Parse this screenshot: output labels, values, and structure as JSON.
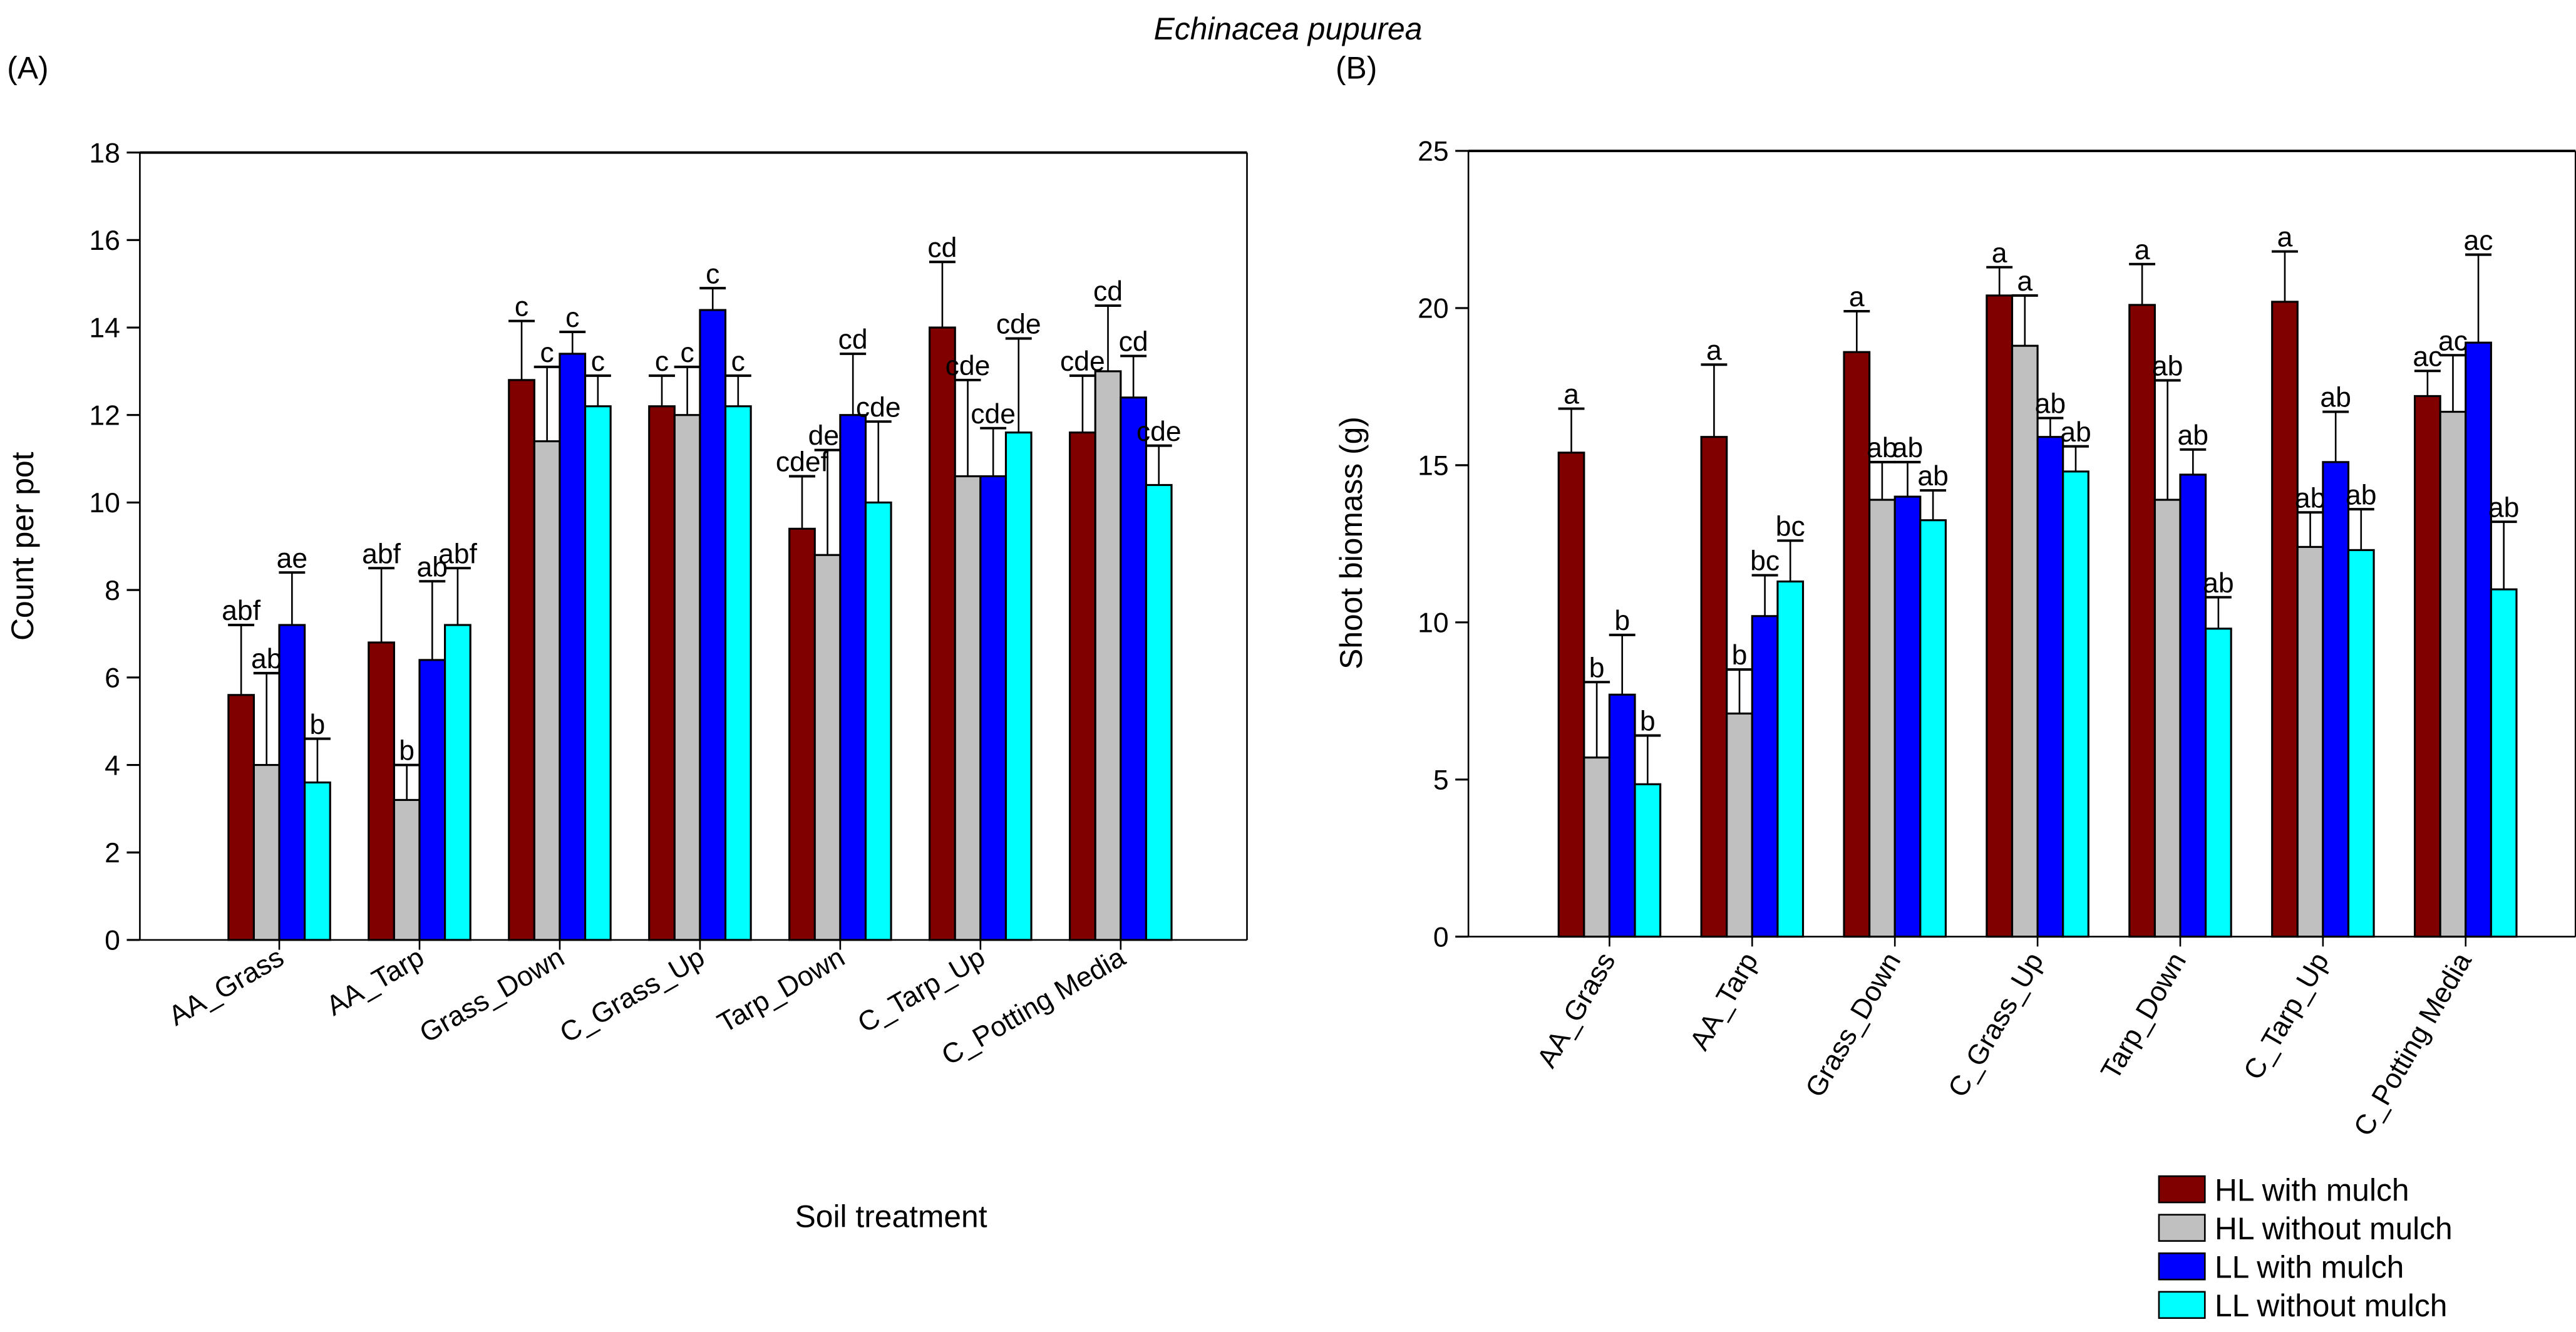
{
  "title": "Echinacea pupurea",
  "xlabel": "Soil treatment",
  "legend": [
    {
      "name": "HL with mulch",
      "color": "#800000"
    },
    {
      "name": "HL without mulch",
      "color": "#c0c0c0"
    },
    {
      "name": "LL with mulch",
      "color": "#0000ff"
    },
    {
      "name": "LL without mulch",
      "color": "#00ffff"
    }
  ],
  "chart_data": [
    {
      "type": "bar",
      "panel": "(A)",
      "ylabel": "Count per pot",
      "ylim": [
        0,
        18
      ],
      "yticks": [
        0,
        2,
        4,
        6,
        8,
        10,
        12,
        14,
        16,
        18
      ],
      "legend_position": "bottom-right",
      "categories": [
        "AA_Grass",
        "AA_Tarp",
        "Grass_Down",
        "C_Grass_Up",
        "Tarp_Down",
        "C_Tarp_Up",
        "C_Potting Media"
      ],
      "series": [
        {
          "name": "HL with mulch",
          "values": [
            5.6,
            6.8,
            12.8,
            12.2,
            9.4,
            14.0,
            11.6
          ],
          "error_upper": [
            7.2,
            8.5,
            14.15,
            12.9,
            10.6,
            15.5,
            12.9
          ],
          "letters": [
            "abf",
            "abf",
            "c",
            "c",
            "cdef",
            "cd",
            "cde"
          ]
        },
        {
          "name": "HL without mulch",
          "values": [
            4.0,
            3.2,
            11.4,
            12.0,
            8.8,
            10.6,
            13.0
          ],
          "error_upper": [
            6.1,
            4.0,
            13.1,
            13.1,
            11.2,
            12.8,
            14.5
          ],
          "letters": [
            "ab",
            "b",
            "c",
            "c",
            "def",
            "cde",
            "cd"
          ]
        },
        {
          "name": "LL with mulch",
          "values": [
            7.2,
            6.4,
            13.4,
            14.4,
            12.0,
            10.6,
            12.4
          ],
          "error_upper": [
            8.4,
            8.2,
            13.9,
            14.9,
            13.4,
            11.7,
            13.35
          ],
          "letters": [
            "ae",
            "ab",
            "c",
            "c",
            "cd",
            "cde",
            "cd"
          ]
        },
        {
          "name": "LL without mulch",
          "values": [
            3.6,
            7.2,
            12.2,
            12.2,
            10.0,
            11.6,
            10.4
          ],
          "error_upper": [
            4.6,
            8.5,
            12.9,
            12.9,
            11.85,
            13.75,
            11.3
          ],
          "letters": [
            "b",
            "abf",
            "c",
            "c",
            "cde",
            "cde",
            "cde"
          ]
        }
      ]
    },
    {
      "type": "bar",
      "panel": "(B)",
      "ylabel": "Shoot biomass (g)",
      "ylim": [
        0,
        25
      ],
      "yticks": [
        0,
        5,
        10,
        15,
        20,
        25
      ],
      "legend_position": "bottom-right",
      "categories": [
        "AA_Grass",
        "AA_Tarp",
        "Grass_Down",
        "C_Grass_Up",
        "Tarp_Down",
        "C_Tarp_Up",
        "C_Potting Media"
      ],
      "series": [
        {
          "name": "HL with mulch",
          "values": [
            15.4,
            15.9,
            18.6,
            20.4,
            20.1,
            20.2,
            17.2
          ],
          "error_upper": [
            16.8,
            18.2,
            19.9,
            21.3,
            21.4,
            21.8,
            18.0
          ],
          "letters": [
            "a",
            "a",
            "a",
            "a",
            "a",
            "a",
            "ac"
          ]
        },
        {
          "name": "HL without mulch",
          "values": [
            5.7,
            7.1,
            13.9,
            18.8,
            13.9,
            12.4,
            16.7
          ],
          "error_upper": [
            8.1,
            8.5,
            15.1,
            20.4,
            17.7,
            13.5,
            18.5
          ],
          "letters": [
            "b",
            "b",
            "ab",
            "a",
            "ab",
            "ab",
            "ac"
          ]
        },
        {
          "name": "LL with mulch",
          "values": [
            7.7,
            10.2,
            14.0,
            15.9,
            14.7,
            15.1,
            18.9
          ],
          "error_upper": [
            9.6,
            11.5,
            15.1,
            16.5,
            15.5,
            16.7,
            21.7
          ],
          "letters": [
            "b",
            "bc",
            "ab",
            "ab",
            "ab",
            "ab",
            "ac"
          ]
        },
        {
          "name": "LL without mulch",
          "values": [
            4.85,
            11.3,
            13.25,
            14.8,
            9.8,
            12.3,
            11.05
          ],
          "error_upper": [
            6.4,
            12.6,
            14.2,
            15.6,
            10.8,
            13.6,
            13.2
          ],
          "letters": [
            "b",
            "bc",
            "ab",
            "ab",
            "ab",
            "ab",
            "ab"
          ]
        }
      ]
    }
  ]
}
